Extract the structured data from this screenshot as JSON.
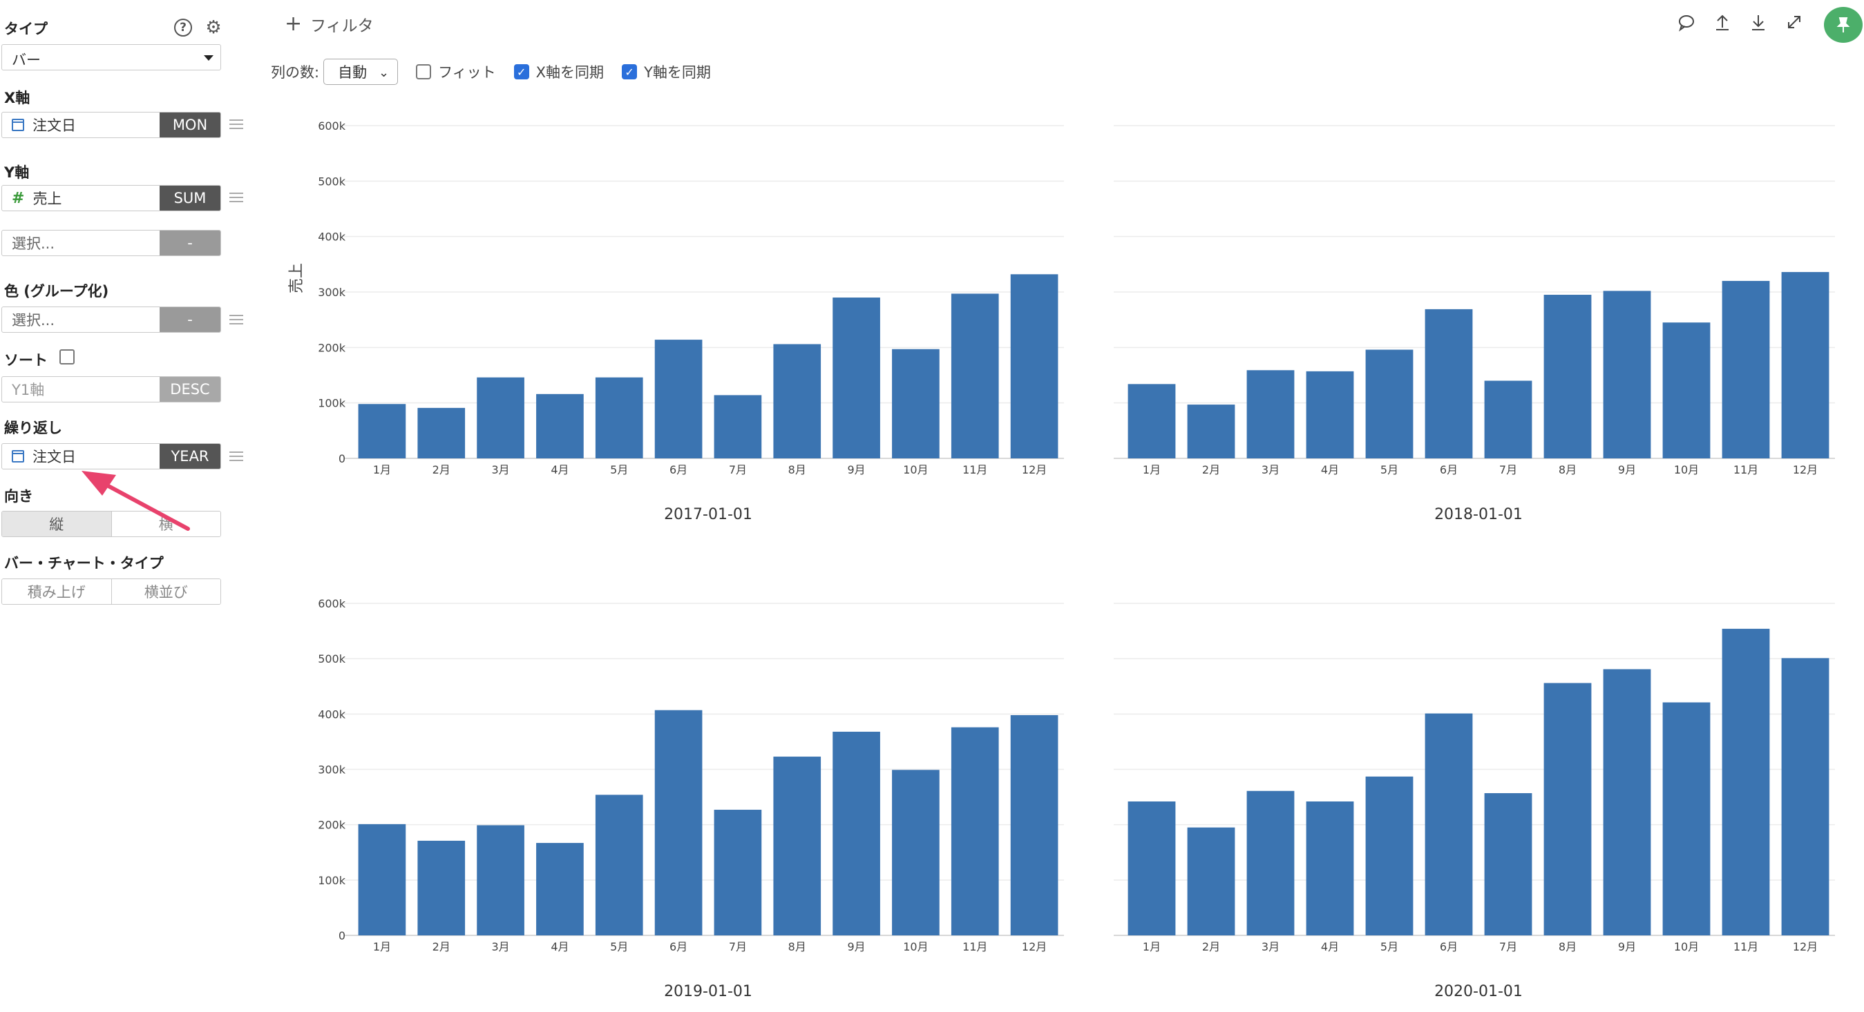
{
  "sidebar": {
    "type_label": "タイプ",
    "help_icon": "question-circle-icon",
    "settings_icon": "gear-icon",
    "type_value": "バー",
    "x_axis_label": "X軸",
    "x_field": {
      "name": "注文日",
      "agg": "MON",
      "icon": "calendar-icon"
    },
    "y_axis_label": "Y軸",
    "y_field": {
      "name": "売上",
      "agg": "SUM",
      "icon": "hash-icon"
    },
    "y_field2": {
      "placeholder": "選択...",
      "agg": "-"
    },
    "color_label": "色 (グループ化)",
    "color_field": {
      "placeholder": "選択...",
      "agg": "-"
    },
    "sort_label": "ソート",
    "sort_field": {
      "value": "Y1軸",
      "agg": "DESC"
    },
    "repeat_label": "繰り返し",
    "repeat_field": {
      "name": "注文日",
      "agg": "YEAR",
      "icon": "calendar-icon"
    },
    "orientation_label": "向き",
    "orientation_options": [
      "縦",
      "横"
    ],
    "bar_type_label": "バー・チャート・タイプ",
    "bar_type_options": [
      "積み上げ",
      "横並び"
    ]
  },
  "toolbar": {
    "filter_label": "フィルタ",
    "columns_label": "列の数:",
    "columns_value": "自動",
    "fit_label": "フィット",
    "sync_x_label": "X軸を同期",
    "sync_y_label": "Y軸を同期",
    "icons": [
      "comment-icon",
      "upload-icon",
      "download-icon",
      "expand-icon",
      "pin-icon"
    ]
  },
  "colors": {
    "bar": "#3b74b1",
    "accent_arrow": "#e8426c",
    "pin": "#4caf6a"
  },
  "chart_data": [
    {
      "type": "bar",
      "title": "2017-01-01",
      "ylabel": "売上",
      "categories": [
        "1月",
        "2月",
        "3月",
        "4月",
        "5月",
        "6月",
        "7月",
        "8月",
        "9月",
        "10月",
        "11月",
        "12月"
      ],
      "values": [
        98000,
        91000,
        146000,
        116000,
        146000,
        214000,
        114000,
        206000,
        290000,
        197000,
        297000,
        332000
      ],
      "ylim": [
        0,
        600000
      ],
      "yticks": [
        "0",
        "100k",
        "200k",
        "300k",
        "400k",
        "500k",
        "600k"
      ]
    },
    {
      "type": "bar",
      "title": "2018-01-01",
      "categories": [
        "1月",
        "2月",
        "3月",
        "4月",
        "5月",
        "6月",
        "7月",
        "8月",
        "9月",
        "10月",
        "11月",
        "12月"
      ],
      "values": [
        134000,
        97000,
        159000,
        157000,
        196000,
        269000,
        140000,
        295000,
        302000,
        245000,
        320000,
        336000
      ],
      "ylim": [
        0,
        600000
      ]
    },
    {
      "type": "bar",
      "title": "2019-01-01",
      "categories": [
        "1月",
        "2月",
        "3月",
        "4月",
        "5月",
        "6月",
        "7月",
        "8月",
        "9月",
        "10月",
        "11月",
        "12月"
      ],
      "values": [
        201000,
        171000,
        199000,
        167000,
        254000,
        407000,
        227000,
        323000,
        368000,
        299000,
        376000,
        398000
      ],
      "ylim": [
        0,
        600000
      ],
      "yticks": [
        "0",
        "100k",
        "200k",
        "300k",
        "400k",
        "500k",
        "600k"
      ]
    },
    {
      "type": "bar",
      "title": "2020-01-01",
      "categories": [
        "1月",
        "2月",
        "3月",
        "4月",
        "5月",
        "6月",
        "7月",
        "8月",
        "9月",
        "10月",
        "11月",
        "12月"
      ],
      "values": [
        242000,
        195000,
        261000,
        242000,
        287000,
        401000,
        257000,
        456000,
        481000,
        421000,
        554000,
        501000
      ],
      "ylim": [
        0,
        600000
      ]
    }
  ]
}
